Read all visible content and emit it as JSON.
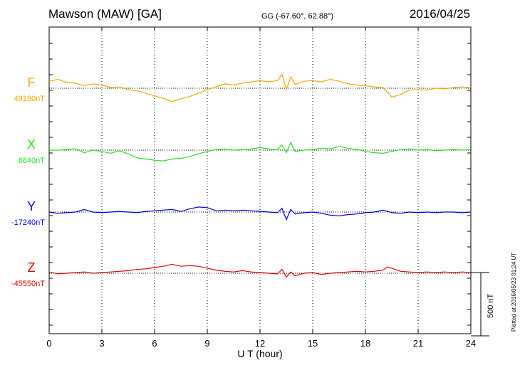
{
  "header": {
    "station": "Mawson (MAW)  [GA]",
    "coords": "GG (-67.60°,  62.88°)",
    "date": "2016/04/25"
  },
  "footer": {
    "plotted": "Plotted at 2016/05/23 01:24 UT",
    "scale_label": "500 nT"
  },
  "chart_data": {
    "type": "line",
    "title": "Mawson (MAW)  [GA]",
    "xlabel": "U T (hour)",
    "xlim": [
      0,
      24
    ],
    "xticks": [
      0,
      3,
      6,
      9,
      12,
      15,
      18,
      21,
      24
    ],
    "grid": true,
    "scale_bar_nT": 500,
    "series": [
      {
        "name": "F",
        "baseline_label": "49190nT",
        "baseline_nT": 49190,
        "color": "#f5a800",
        "points": [
          [
            0,
            49245
          ],
          [
            0.5,
            49260
          ],
          [
            1,
            49235
          ],
          [
            1.5,
            49230
          ],
          [
            2,
            49210
          ],
          [
            2.5,
            49225
          ],
          [
            3,
            49215
          ],
          [
            3.5,
            49195
          ],
          [
            4,
            49200
          ],
          [
            4.5,
            49180
          ],
          [
            5,
            49170
          ],
          [
            5.5,
            49150
          ],
          [
            6,
            49130
          ],
          [
            6.5,
            49110
          ],
          [
            7,
            49085
          ],
          [
            7.5,
            49105
          ],
          [
            8,
            49125
          ],
          [
            8.5,
            49150
          ],
          [
            9,
            49180
          ],
          [
            9.5,
            49200
          ],
          [
            10,
            49225
          ],
          [
            10.5,
            49215
          ],
          [
            11,
            49230
          ],
          [
            11.5,
            49240
          ],
          [
            12,
            49250
          ],
          [
            12.5,
            49240
          ],
          [
            13,
            49250
          ],
          [
            13.25,
            49300
          ],
          [
            13.5,
            49180
          ],
          [
            13.75,
            49280
          ],
          [
            14,
            49220
          ],
          [
            14.5,
            49245
          ],
          [
            15,
            49250
          ],
          [
            15.5,
            49240
          ],
          [
            16,
            49260
          ],
          [
            16.5,
            49245
          ],
          [
            17,
            49225
          ],
          [
            17.5,
            49215
          ],
          [
            18,
            49210
          ],
          [
            18.5,
            49200
          ],
          [
            19,
            49195
          ],
          [
            19.25,
            49160
          ],
          [
            19.5,
            49120
          ],
          [
            20,
            49140
          ],
          [
            20.5,
            49175
          ],
          [
            21,
            49180
          ],
          [
            21.5,
            49175
          ],
          [
            22,
            49190
          ],
          [
            22.5,
            49185
          ],
          [
            23,
            49195
          ],
          [
            23.5,
            49200
          ],
          [
            24,
            49195
          ]
        ]
      },
      {
        "name": "X",
        "baseline_label": "6840nT",
        "baseline_nT": 6840,
        "color": "#22e022",
        "points": [
          [
            0,
            6840
          ],
          [
            0.5,
            6840
          ],
          [
            1,
            6845
          ],
          [
            1.5,
            6850
          ],
          [
            2,
            6820
          ],
          [
            2.5,
            6840
          ],
          [
            3,
            6830
          ],
          [
            3.5,
            6815
          ],
          [
            4,
            6835
          ],
          [
            4.5,
            6810
          ],
          [
            5,
            6780
          ],
          [
            5.5,
            6770
          ],
          [
            6,
            6760
          ],
          [
            6.5,
            6755
          ],
          [
            7,
            6770
          ],
          [
            7.5,
            6775
          ],
          [
            8,
            6790
          ],
          [
            8.5,
            6810
          ],
          [
            9,
            6830
          ],
          [
            9.5,
            6845
          ],
          [
            10,
            6850
          ],
          [
            10.5,
            6840
          ],
          [
            11,
            6845
          ],
          [
            11.5,
            6850
          ],
          [
            12,
            6860
          ],
          [
            12.5,
            6850
          ],
          [
            13,
            6845
          ],
          [
            13.25,
            6880
          ],
          [
            13.5,
            6820
          ],
          [
            13.75,
            6900
          ],
          [
            14,
            6830
          ],
          [
            14.5,
            6840
          ],
          [
            15,
            6845
          ],
          [
            15.5,
            6855
          ],
          [
            16,
            6850
          ],
          [
            16.5,
            6870
          ],
          [
            17,
            6855
          ],
          [
            17.5,
            6845
          ],
          [
            18,
            6830
          ],
          [
            18.5,
            6820
          ],
          [
            19,
            6815
          ],
          [
            19.5,
            6830
          ],
          [
            20,
            6845
          ],
          [
            20.5,
            6850
          ],
          [
            21,
            6840
          ],
          [
            21.5,
            6845
          ],
          [
            22,
            6835
          ],
          [
            22.5,
            6840
          ],
          [
            23,
            6845
          ],
          [
            23.5,
            6840
          ],
          [
            24,
            6845
          ]
        ]
      },
      {
        "name": "Y",
        "baseline_label": "-17240nT",
        "baseline_nT": -17240,
        "color": "#0000e0",
        "points": [
          [
            0,
            -17240
          ],
          [
            0.5,
            -17250
          ],
          [
            1,
            -17245
          ],
          [
            1.5,
            -17240
          ],
          [
            2,
            -17220
          ],
          [
            2.5,
            -17240
          ],
          [
            3,
            -17245
          ],
          [
            3.5,
            -17240
          ],
          [
            4,
            -17235
          ],
          [
            4.5,
            -17240
          ],
          [
            5,
            -17245
          ],
          [
            5.5,
            -17235
          ],
          [
            6,
            -17230
          ],
          [
            6.5,
            -17225
          ],
          [
            7,
            -17220
          ],
          [
            7.5,
            -17235
          ],
          [
            8,
            -17215
          ],
          [
            8.5,
            -17200
          ],
          [
            9,
            -17205
          ],
          [
            9.5,
            -17230
          ],
          [
            10,
            -17225
          ],
          [
            10.5,
            -17230
          ],
          [
            11,
            -17225
          ],
          [
            11.5,
            -17230
          ],
          [
            12,
            -17235
          ],
          [
            12.5,
            -17240
          ],
          [
            13,
            -17245
          ],
          [
            13.25,
            -17210
          ],
          [
            13.5,
            -17300
          ],
          [
            13.75,
            -17220
          ],
          [
            14,
            -17255
          ],
          [
            14.5,
            -17245
          ],
          [
            15,
            -17240
          ],
          [
            15.5,
            -17250
          ],
          [
            16,
            -17265
          ],
          [
            16.5,
            -17270
          ],
          [
            17,
            -17260
          ],
          [
            17.5,
            -17255
          ],
          [
            18,
            -17245
          ],
          [
            18.5,
            -17240
          ],
          [
            19,
            -17225
          ],
          [
            19.5,
            -17245
          ],
          [
            20,
            -17250
          ],
          [
            20.5,
            -17240
          ],
          [
            21,
            -17245
          ],
          [
            21.5,
            -17240
          ],
          [
            22,
            -17245
          ],
          [
            22.5,
            -17240
          ],
          [
            23,
            -17240
          ],
          [
            23.5,
            -17245
          ],
          [
            24,
            -17240
          ]
        ]
      },
      {
        "name": "Z",
        "baseline_label": "-45550nT",
        "baseline_nT": -45550,
        "color": "#e00000",
        "points": [
          [
            0,
            -45540
          ],
          [
            0.5,
            -45555
          ],
          [
            1,
            -45550
          ],
          [
            1.5,
            -45545
          ],
          [
            2,
            -45540
          ],
          [
            2.5,
            -45550
          ],
          [
            3,
            -45545
          ],
          [
            3.5,
            -45540
          ],
          [
            4,
            -45535
          ],
          [
            4.5,
            -45530
          ],
          [
            5,
            -45520
          ],
          [
            5.5,
            -45515
          ],
          [
            6,
            -45505
          ],
          [
            6.5,
            -45495
          ],
          [
            7,
            -45480
          ],
          [
            7.5,
            -45495
          ],
          [
            8,
            -45490
          ],
          [
            8.5,
            -45495
          ],
          [
            9,
            -45510
          ],
          [
            9.5,
            -45525
          ],
          [
            10,
            -45535
          ],
          [
            10.5,
            -45540
          ],
          [
            11,
            -45530
          ],
          [
            11.5,
            -45540
          ],
          [
            12,
            -45545
          ],
          [
            12.5,
            -45550
          ],
          [
            13,
            -45555
          ],
          [
            13.25,
            -45520
          ],
          [
            13.5,
            -45580
          ],
          [
            13.75,
            -45540
          ],
          [
            14,
            -45570
          ],
          [
            14.5,
            -45550
          ],
          [
            15,
            -45545
          ],
          [
            15.5,
            -45560
          ],
          [
            16,
            -45550
          ],
          [
            16.5,
            -45545
          ],
          [
            17,
            -45540
          ],
          [
            17.5,
            -45535
          ],
          [
            18,
            -45540
          ],
          [
            18.5,
            -45535
          ],
          [
            19,
            -45525
          ],
          [
            19.25,
            -45500
          ],
          [
            19.5,
            -45510
          ],
          [
            20,
            -45535
          ],
          [
            20.5,
            -45540
          ],
          [
            21,
            -45545
          ],
          [
            21.5,
            -45540
          ],
          [
            22,
            -45545
          ],
          [
            22.5,
            -45540
          ],
          [
            23,
            -45545
          ],
          [
            23.5,
            -45540
          ],
          [
            24,
            -45545
          ]
        ]
      }
    ]
  }
}
